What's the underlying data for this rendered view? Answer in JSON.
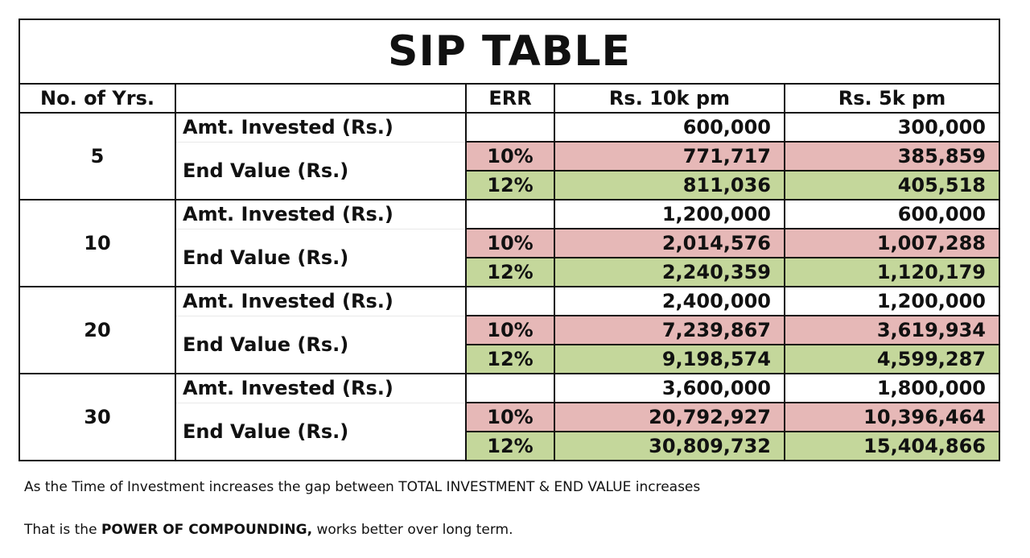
{
  "title": "SIP TABLE",
  "headers": {
    "years": "No. of Yrs.",
    "label": "",
    "err": "ERR",
    "col10k": "Rs. 10k pm",
    "col5k": "Rs. 5k pm"
  },
  "row_labels": {
    "invested": "Amt. Invested (Rs.)",
    "end_value": "End Value (Rs.)"
  },
  "groups": [
    {
      "years": "5",
      "invested": {
        "v10k": "600,000",
        "v5k": "300,000"
      },
      "err10": {
        "err": "10%",
        "v10k": "771,717",
        "v5k": "385,859"
      },
      "err12": {
        "err": "12%",
        "v10k": "811,036",
        "v5k": "405,518"
      }
    },
    {
      "years": "10",
      "invested": {
        "v10k": "1,200,000",
        "v5k": "600,000"
      },
      "err10": {
        "err": "10%",
        "v10k": "2,014,576",
        "v5k": "1,007,288"
      },
      "err12": {
        "err": "12%",
        "v10k": "2,240,359",
        "v5k": "1,120,179"
      }
    },
    {
      "years": "20",
      "invested": {
        "v10k": "2,400,000",
        "v5k": "1,200,000"
      },
      "err10": {
        "err": "10%",
        "v10k": "7,239,867",
        "v5k": "3,619,934"
      },
      "err12": {
        "err": "12%",
        "v10k": "9,198,574",
        "v5k": "4,599,287"
      }
    },
    {
      "years": "30",
      "invested": {
        "v10k": "3,600,000",
        "v5k": "1,800,000"
      },
      "err10": {
        "err": "10%",
        "v10k": "20,792,927",
        "v5k": "10,396,464"
      },
      "err12": {
        "err": "12%",
        "v10k": "30,809,732",
        "v5k": "15,404,866"
      }
    }
  ],
  "notes": {
    "line1": "As the Time of Investment increases the gap between TOTAL INVESTMENT & END VALUE increases",
    "line2_prefix": "That is the ",
    "line2_bold": "POWER OF COMPOUNDING,",
    "line2_suffix": "  works better over long term."
  },
  "colors": {
    "err10_fill": "#e6b8b7",
    "err12_fill": "#c4d79b",
    "border": "#111111"
  }
}
